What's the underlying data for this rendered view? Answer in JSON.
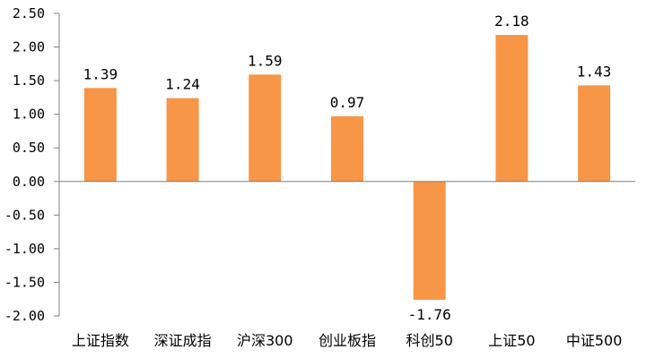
{
  "chart_data": {
    "type": "bar",
    "title": "",
    "xlabel": "",
    "ylabel": "",
    "categories": [
      "上证指数",
      "深证成指",
      "沪深300",
      "创业板指",
      "科创50",
      "上证50",
      "中证500"
    ],
    "values": [
      1.39,
      1.24,
      1.59,
      0.97,
      -1.76,
      2.18,
      1.43
    ],
    "data_labels": [
      "1.39",
      "1.24",
      "1.59",
      "0.97",
      "-1.76",
      "2.18",
      "1.43"
    ],
    "ylim": [
      -2.0,
      2.5
    ],
    "yticks": [
      2.5,
      2.0,
      1.5,
      1.0,
      0.5,
      0.0,
      -0.5,
      -1.0,
      -1.5,
      -2.0
    ],
    "ytick_labels": [
      "2.50",
      "2.00",
      "1.50",
      "1.00",
      "0.50",
      "0.00",
      "-0.50",
      "-1.00",
      "-1.50",
      "-2.00"
    ],
    "grid": false,
    "legend": "none",
    "bar_color": "#F79646",
    "axis_color": "#7F7F7F"
  }
}
